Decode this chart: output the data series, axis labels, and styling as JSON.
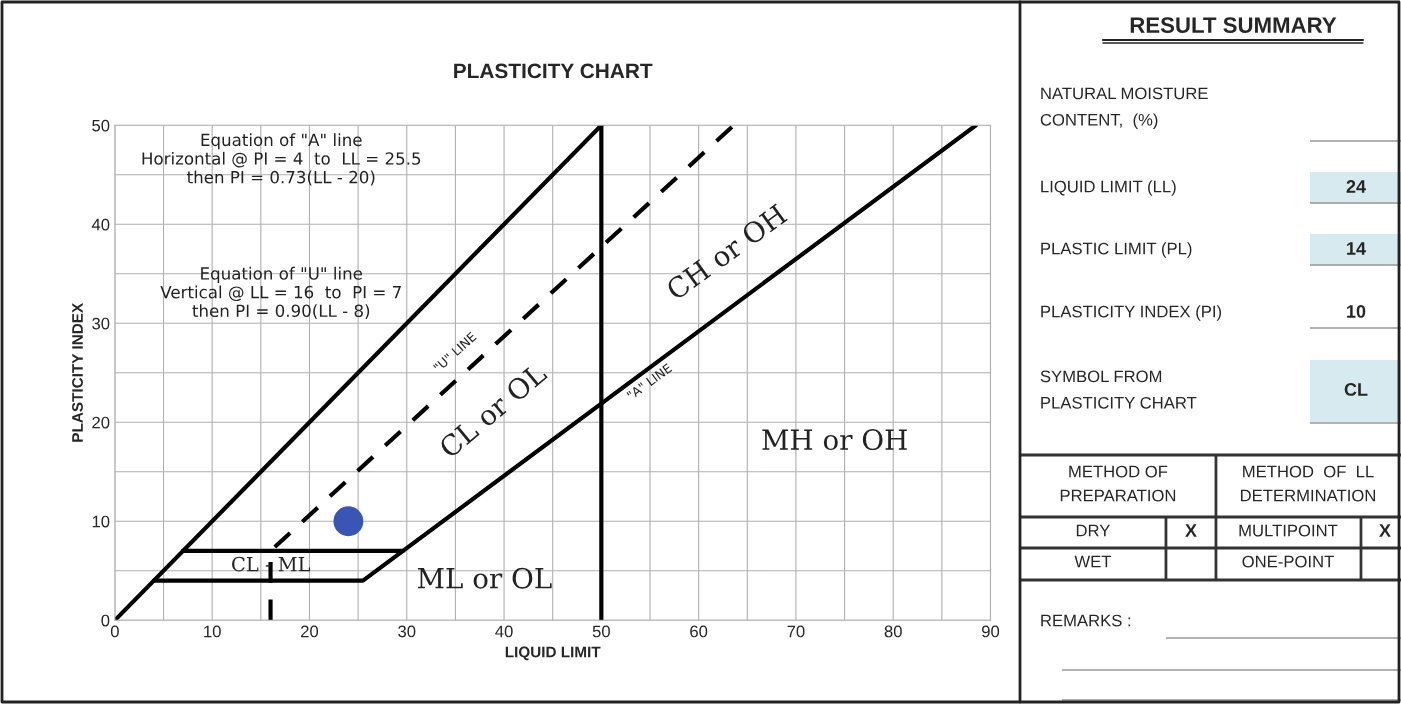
{
  "chart_data": [
    {
      "type": "line",
      "title": "PLASTICITY CHART",
      "xlabel": "LIQUID LIMIT",
      "ylabel": "PLASTICITY INDEX",
      "xlim": [
        0,
        90
      ],
      "ylim": [
        0,
        50
      ],
      "xticks": [
        0,
        {
          "value": 5,
          "label": null
        },
        10,
        {
          "value": 15,
          "label": null
        },
        20,
        {
          "value": 25,
          "label": null
        },
        30,
        {
          "value": 35,
          "label": null
        },
        40,
        {
          "value": 45,
          "label": null
        },
        50,
        {
          "value": 55,
          "label": null
        },
        60,
        {
          "value": 65,
          "label": null
        },
        70,
        {
          "value": 75,
          "label": null
        },
        80,
        {
          "value": 85,
          "label": null
        },
        90
      ],
      "yticks": [
        0,
        {
          "value": 5,
          "label": null
        },
        10,
        {
          "value": 15,
          "label": null
        },
        20,
        {
          "value": 25,
          "label": null
        },
        30,
        {
          "value": 35,
          "label": null
        },
        40,
        {
          "value": 45,
          "label": null
        },
        50
      ],
      "grid": true,
      "legend": false,
      "series": [
        {
          "type": "line",
          "color": "#000000",
          "line_style": "solid",
          "x": [
            0,
            50
          ],
          "values": [
            0,
            50
          ]
        },
        {
          "type": "line",
          "color": "#000000",
          "line_style": "solid",
          "x": [
            50,
            50
          ],
          "values": [
            0,
            50
          ]
        },
        {
          "type": "line",
          "color": "#000000",
          "line_style": "solid",
          "x": [
            4,
            25.5,
            88.5
          ],
          "values": [
            4,
            4,
            50
          ]
        },
        {
          "type": "line",
          "color": "#000000",
          "line_style": "solid",
          "x": [
            7,
            29.6
          ],
          "values": [
            7,
            7
          ]
        },
        {
          "type": "line",
          "color": "#000000",
          "line_style": "dashed",
          "x": [
            16,
            16,
            63.6
          ],
          "values": [
            0,
            7,
            50
          ]
        },
        {
          "type": "scatter",
          "color": "#3a55b4",
          "marker": "circle",
          "x": [
            24
          ],
          "values": [
            10
          ]
        }
      ],
      "annotations": [
        "Equation of \"A\" line\nHorizontal @ PI = 4  to  LL = 25.5\nthen PI = 0.73(LL - 20)",
        "Equation of \"U\" line\nVertical @ LL = 16  to  PI = 7\nthen PI = 0.90(LL - 8)",
        "\"U\" LINE",
        "\"A\" LINE",
        "CL or OL",
        "CH or OH",
        "MH or OH",
        "CL - ML",
        "ML or OL"
      ]
    },
    {
      "type": "other",
      "title": "RESULT SUMMARY",
      "annotations": [
        "NATURAL MOISTURE\nCONTENT,  (%)",
        "LIQUID LIMIT (LL)",
        "24",
        "PLASTIC LIMIT (PL)",
        "14",
        "PLASTICITY INDEX (PI)",
        "10",
        "SYMBOL FROM\nPLASTICITY CHART",
        "CL",
        "METHOD OF\nPREPARATION",
        "METHOD  OF  LL\nDETERMINATION",
        "DRY",
        "X",
        "MULTIPOINT",
        "X",
        "WET",
        "ONE-POINT",
        "REMARKS :"
      ]
    }
  ]
}
